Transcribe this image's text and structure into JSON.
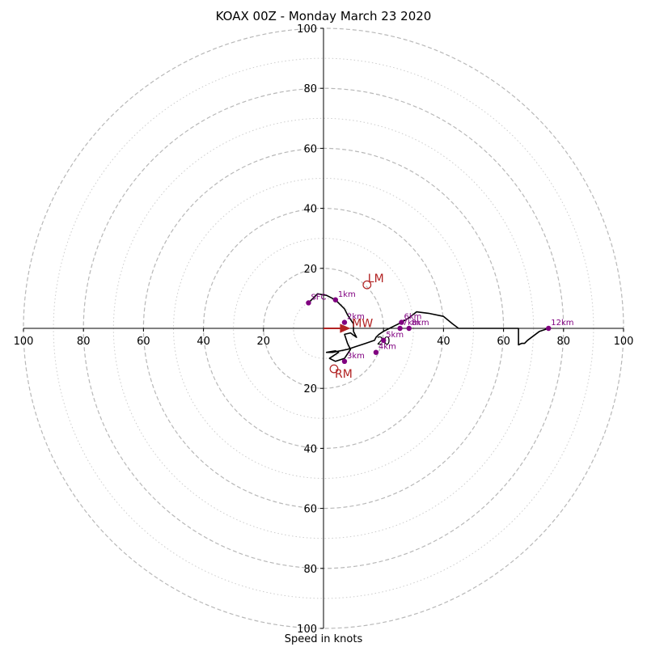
{
  "chart_data": {
    "type": "hodograph",
    "title": "KOAX 00Z - Monday March 23 2020",
    "xlabel": "Speed in knots",
    "ring_major": [
      20,
      40,
      60,
      80,
      100
    ],
    "ring_minor": [
      10,
      30,
      50,
      70,
      90
    ],
    "x_ticks": [
      "100",
      "80",
      "60",
      "40",
      "20",
      "20",
      "40",
      "60",
      "80",
      "100"
    ],
    "x_tick_values": [
      -100,
      -80,
      -60,
      -40,
      -20,
      20,
      40,
      60,
      80,
      100
    ],
    "y_ticks": [
      "100",
      "80",
      "60",
      "40",
      "20",
      "20",
      "40",
      "60",
      "80",
      "100"
    ],
    "y_tick_values": [
      100,
      80,
      60,
      40,
      20,
      -20,
      -40,
      -60,
      -80,
      -100
    ],
    "range": [
      -100,
      100
    ],
    "trace_color": "#000000",
    "marker_color": "#800080",
    "motion_color": "#b22222",
    "trace": [
      [
        -5,
        8.5
      ],
      [
        -2,
        11.5
      ],
      [
        1,
        11
      ],
      [
        4,
        9.5
      ],
      [
        7,
        6.5
      ],
      [
        8,
        4.5
      ],
      [
        9,
        3
      ],
      [
        10,
        1.5
      ],
      [
        10,
        -1
      ],
      [
        11,
        -3
      ],
      [
        9,
        -1.5
      ],
      [
        7,
        -2
      ],
      [
        8,
        -5
      ],
      [
        9,
        -7
      ],
      [
        7,
        -10
      ],
      [
        4,
        -11
      ],
      [
        2,
        -10
      ],
      [
        5,
        -8
      ],
      [
        4,
        -7.5
      ],
      [
        1,
        -8
      ],
      [
        3,
        -8
      ],
      [
        8,
        -7
      ],
      [
        11,
        -6
      ],
      [
        14,
        -5
      ],
      [
        17,
        -4
      ],
      [
        17.5,
        -3
      ],
      [
        18.5,
        -2
      ],
      [
        20,
        -1
      ],
      [
        22,
        0
      ],
      [
        24,
        1
      ],
      [
        26,
        2
      ],
      [
        28.5,
        3.5
      ],
      [
        31,
        5.5
      ],
      [
        35,
        5
      ],
      [
        40,
        4
      ],
      [
        43,
        1.5
      ],
      [
        45,
        0
      ],
      [
        55,
        0
      ],
      [
        65,
        0
      ],
      [
        65,
        -2
      ],
      [
        65,
        -5.5
      ],
      [
        66,
        -5
      ],
      [
        67,
        -5
      ],
      [
        68,
        -4
      ],
      [
        72,
        -1
      ],
      [
        75,
        0
      ]
    ],
    "levels": [
      {
        "label": "SFC",
        "u": -5,
        "v": 8.5
      },
      {
        "label": "1km",
        "u": 4,
        "v": 9.5
      },
      {
        "label": "2km",
        "u": 7,
        "v": 2
      },
      {
        "label": "3km",
        "u": 7,
        "v": -11
      },
      {
        "label": "4km",
        "u": 17.5,
        "v": -8
      },
      {
        "label": "5km",
        "u": 20,
        "v": -4
      },
      {
        "label": "6km",
        "u": 26,
        "v": 2
      },
      {
        "label": "7km",
        "u": 25.5,
        "v": 0
      },
      {
        "label": "8km",
        "u": 28.5,
        "v": 0
      },
      {
        "label": "12km",
        "u": 75,
        "v": 0
      }
    ],
    "storm_motion": [
      {
        "label": "LM",
        "u": 14.5,
        "v": 14.5
      },
      {
        "label": "RM",
        "u": 3.5,
        "v": -13.5
      }
    ],
    "mean_wind": {
      "label": "MW",
      "u": 9.5,
      "v": 1
    },
    "shear_vector": {
      "u1": 0,
      "v1": 0,
      "u2": 6,
      "v2": 0
    },
    "trace_extra": [
      [
        1,
        0
      ],
      [
        6,
        0
      ],
      [
        7,
        -1
      ],
      [
        7,
        2
      ],
      [
        8,
        1.5
      ]
    ]
  }
}
